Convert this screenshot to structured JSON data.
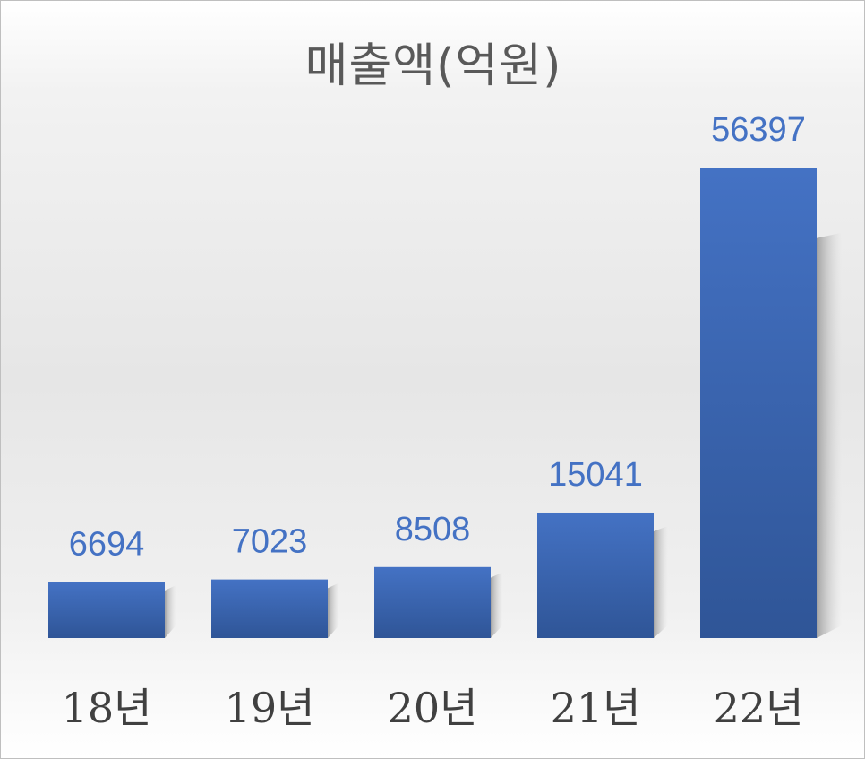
{
  "chart_data": {
    "type": "bar",
    "title": "매출액(억원)",
    "categories": [
      "18년",
      "19년",
      "20년",
      "21년",
      "22년"
    ],
    "values": [
      6694,
      7023,
      8508,
      15041,
      56397
    ],
    "ylim": [
      0,
      56397
    ],
    "grid": false,
    "legend": "none",
    "bar_color": "#4472c4",
    "bar_color_dark": "#2f5597",
    "label_color": "#4472c4"
  }
}
